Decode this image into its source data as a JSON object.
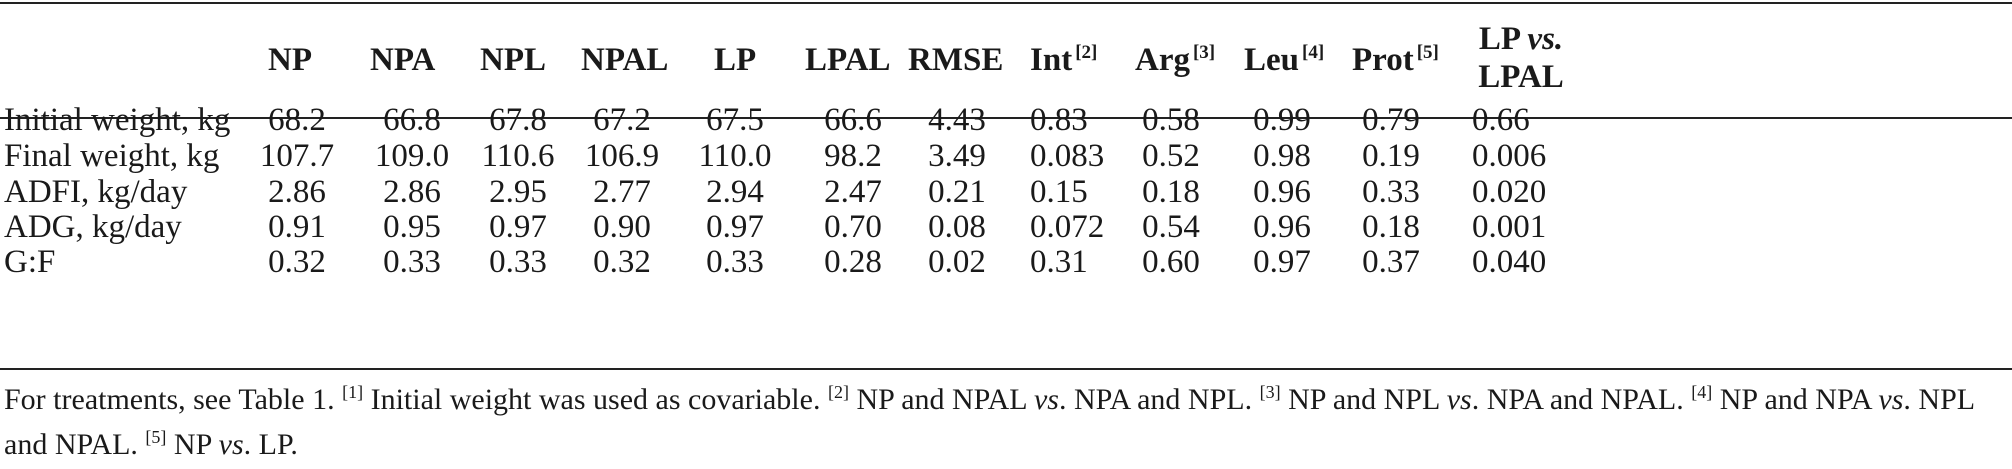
{
  "table": {
    "headers": {
      "np": "NP",
      "npa": "NPA",
      "npl": "NPL",
      "npal": "NPAL",
      "lp": "LP",
      "lpal": "LPAL",
      "rmse": "RMSE",
      "int": "Int",
      "int_note": "[2]",
      "arg": "Arg",
      "arg_note": "[3]",
      "leu": "Leu",
      "leu_note": "[4]",
      "prot": "Prot",
      "prot_note": "[5]",
      "contrast_line1": "LP",
      "contrast_vs": "vs.",
      "contrast_line2": "LPAL"
    },
    "rows": [
      {
        "label": "Initial weight, kg",
        "values": [
          "68.2",
          "66.8",
          "67.8",
          "67.2",
          "67.5",
          "66.6",
          "4.43",
          "0.83",
          "0.58",
          "0.99",
          "0.79",
          "0.66"
        ]
      },
      {
        "label": "Final weight, kg",
        "values": [
          "107.7",
          "109.0",
          "110.6",
          "106.9",
          "110.0",
          "98.2",
          "3.49",
          "0.083",
          "0.52",
          "0.98",
          "0.19",
          "0.006"
        ]
      },
      {
        "label": "ADFI, kg/day",
        "values": [
          "2.86",
          "2.86",
          "2.95",
          "2.77",
          "2.94",
          "2.47",
          "0.21",
          "0.15",
          "0.18",
          "0.96",
          "0.33",
          "0.020"
        ]
      },
      {
        "label": "ADG, kg/day",
        "values": [
          "0.91",
          "0.95",
          "0.97",
          "0.90",
          "0.97",
          "0.70",
          "0.08",
          "0.072",
          "0.54",
          "0.96",
          "0.18",
          "0.001"
        ]
      },
      {
        "label": "G:F",
        "values": [
          "0.32",
          "0.33",
          "0.33",
          "0.32",
          "0.33",
          "0.28",
          "0.02",
          "0.31",
          "0.60",
          "0.97",
          "0.37",
          "0.040"
        ]
      }
    ]
  },
  "footnote": {
    "t1": "For treatments, see Table 1. ",
    "n1": "[1]",
    "t2": " Initial weight was used as covariable. ",
    "n2": "[2]",
    "t3": " NP and NPAL ",
    "vs1": "vs",
    "t4": ". NPA and NPL. ",
    "n3": "[3]",
    "t5": " NP and NPL ",
    "vs2": "vs",
    "t6": ". NPA and NPAL. ",
    "n4": "[4]",
    "t7": " NP and NPA ",
    "vs3": "vs",
    "t8": ". NPL and NPAL. ",
    "n5": "[5]",
    "t9": " NP ",
    "vs4": "vs",
    "t10": ". LP."
  }
}
